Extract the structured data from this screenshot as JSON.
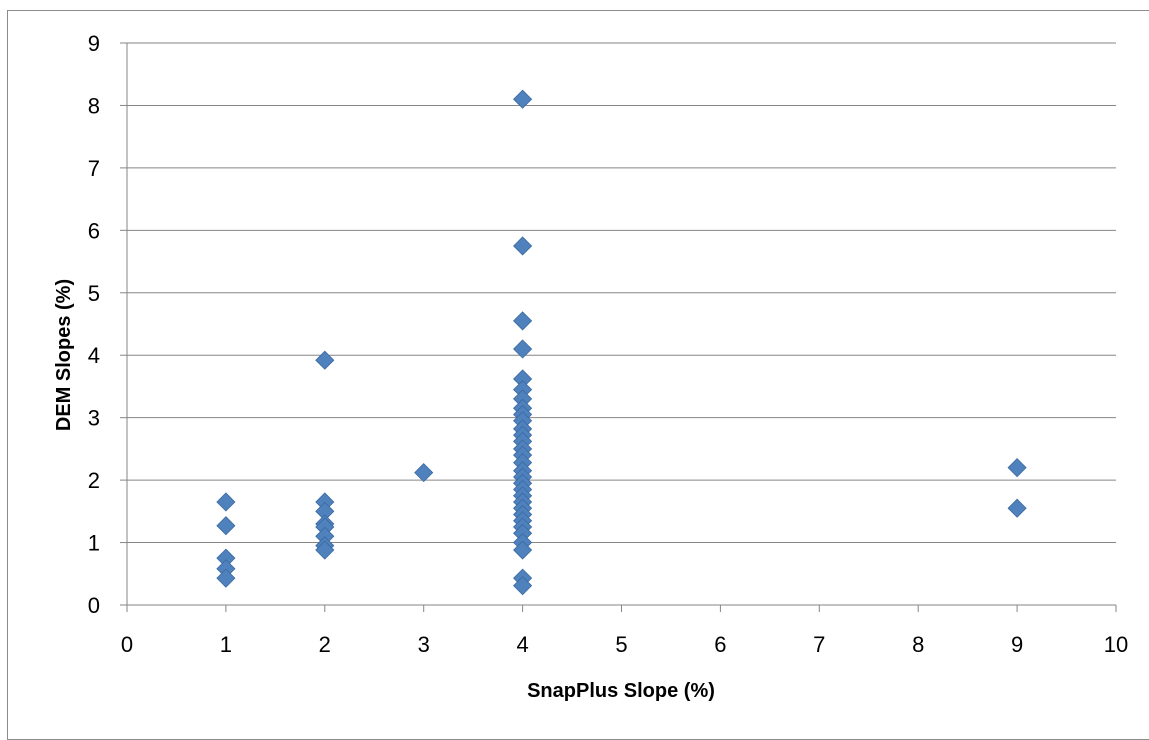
{
  "chart_data": {
    "type": "scatter",
    "title": "",
    "xlabel": "SnapPlus Slope (%)",
    "ylabel": "DEM Slopes (%)",
    "xlim": [
      0,
      10
    ],
    "ylim": [
      0,
      9
    ],
    "xticks": [
      0,
      1,
      2,
      3,
      4,
      5,
      6,
      7,
      8,
      9,
      10
    ],
    "yticks": [
      0,
      1,
      2,
      3,
      4,
      5,
      6,
      7,
      8,
      9
    ],
    "grid": "horizontal",
    "legend": "none",
    "marker": "diamond",
    "marker_color": "#4F81BD",
    "series": [
      {
        "points": [
          [
            1,
            1.65
          ],
          [
            1,
            1.27
          ],
          [
            1,
            0.75
          ],
          [
            1,
            0.58
          ],
          [
            1,
            0.43
          ],
          [
            2,
            3.92
          ],
          [
            2,
            1.65
          ],
          [
            2,
            1.5
          ],
          [
            2,
            1.3
          ],
          [
            2,
            1.25
          ],
          [
            2,
            1.1
          ],
          [
            2,
            0.95
          ],
          [
            2,
            0.88
          ],
          [
            3,
            2.12
          ],
          [
            4,
            8.1
          ],
          [
            4,
            5.75
          ],
          [
            4,
            4.55
          ],
          [
            4,
            4.1
          ],
          [
            4,
            3.62
          ],
          [
            4,
            3.45
          ],
          [
            4,
            3.3
          ],
          [
            4,
            3.15
          ],
          [
            4,
            3.05
          ],
          [
            4,
            2.95
          ],
          [
            4,
            2.82
          ],
          [
            4,
            2.72
          ],
          [
            4,
            2.62
          ],
          [
            4,
            2.5
          ],
          [
            4,
            2.4
          ],
          [
            4,
            2.28
          ],
          [
            4,
            2.15
          ],
          [
            4,
            2.05
          ],
          [
            4,
            1.95
          ],
          [
            4,
            1.85
          ],
          [
            4,
            1.75
          ],
          [
            4,
            1.65
          ],
          [
            4,
            1.55
          ],
          [
            4,
            1.45
          ],
          [
            4,
            1.35
          ],
          [
            4,
            1.25
          ],
          [
            4,
            1.15
          ],
          [
            4,
            1.0
          ],
          [
            4,
            0.88
          ],
          [
            4,
            0.43
          ],
          [
            4,
            0.31
          ],
          [
            9,
            2.2
          ],
          [
            9,
            1.55
          ]
        ]
      }
    ]
  }
}
